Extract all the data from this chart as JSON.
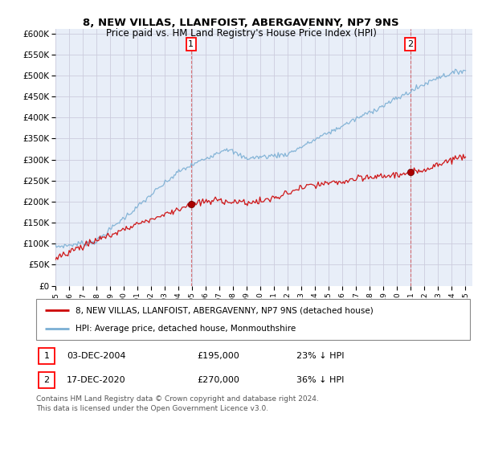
{
  "title": "8, NEW VILLAS, LLANFOIST, ABERGAVENNY, NP7 9NS",
  "subtitle": "Price paid vs. HM Land Registry's House Price Index (HPI)",
  "ylabel_ticks": [
    0,
    50000,
    100000,
    150000,
    200000,
    250000,
    300000,
    350000,
    400000,
    450000,
    500000,
    550000,
    600000
  ],
  "ylim": [
    0,
    610000
  ],
  "xlim_start": 1995.0,
  "xlim_end": 2025.5,
  "sale1_year": 2004.92,
  "sale1_price": 195000,
  "sale1_label": "1",
  "sale1_date": "03-DEC-2004",
  "sale1_hpi_pct": "23% ↓ HPI",
  "sale2_year": 2020.96,
  "sale2_price": 270000,
  "sale2_label": "2",
  "sale2_date": "17-DEC-2020",
  "sale2_hpi_pct": "36% ↓ HPI",
  "red_line_color": "#cc0000",
  "blue_line_color": "#7bafd4",
  "grid_color": "#ccccdd",
  "bg_color": "#e8eef8",
  "legend_entry1": "8, NEW VILLAS, LLANFOIST, ABERGAVENNY, NP7 9NS (detached house)",
  "legend_entry2": "HPI: Average price, detached house, Monmouthshire",
  "footnote": "Contains HM Land Registry data © Crown copyright and database right 2024.\nThis data is licensed under the Open Government Licence v3.0."
}
